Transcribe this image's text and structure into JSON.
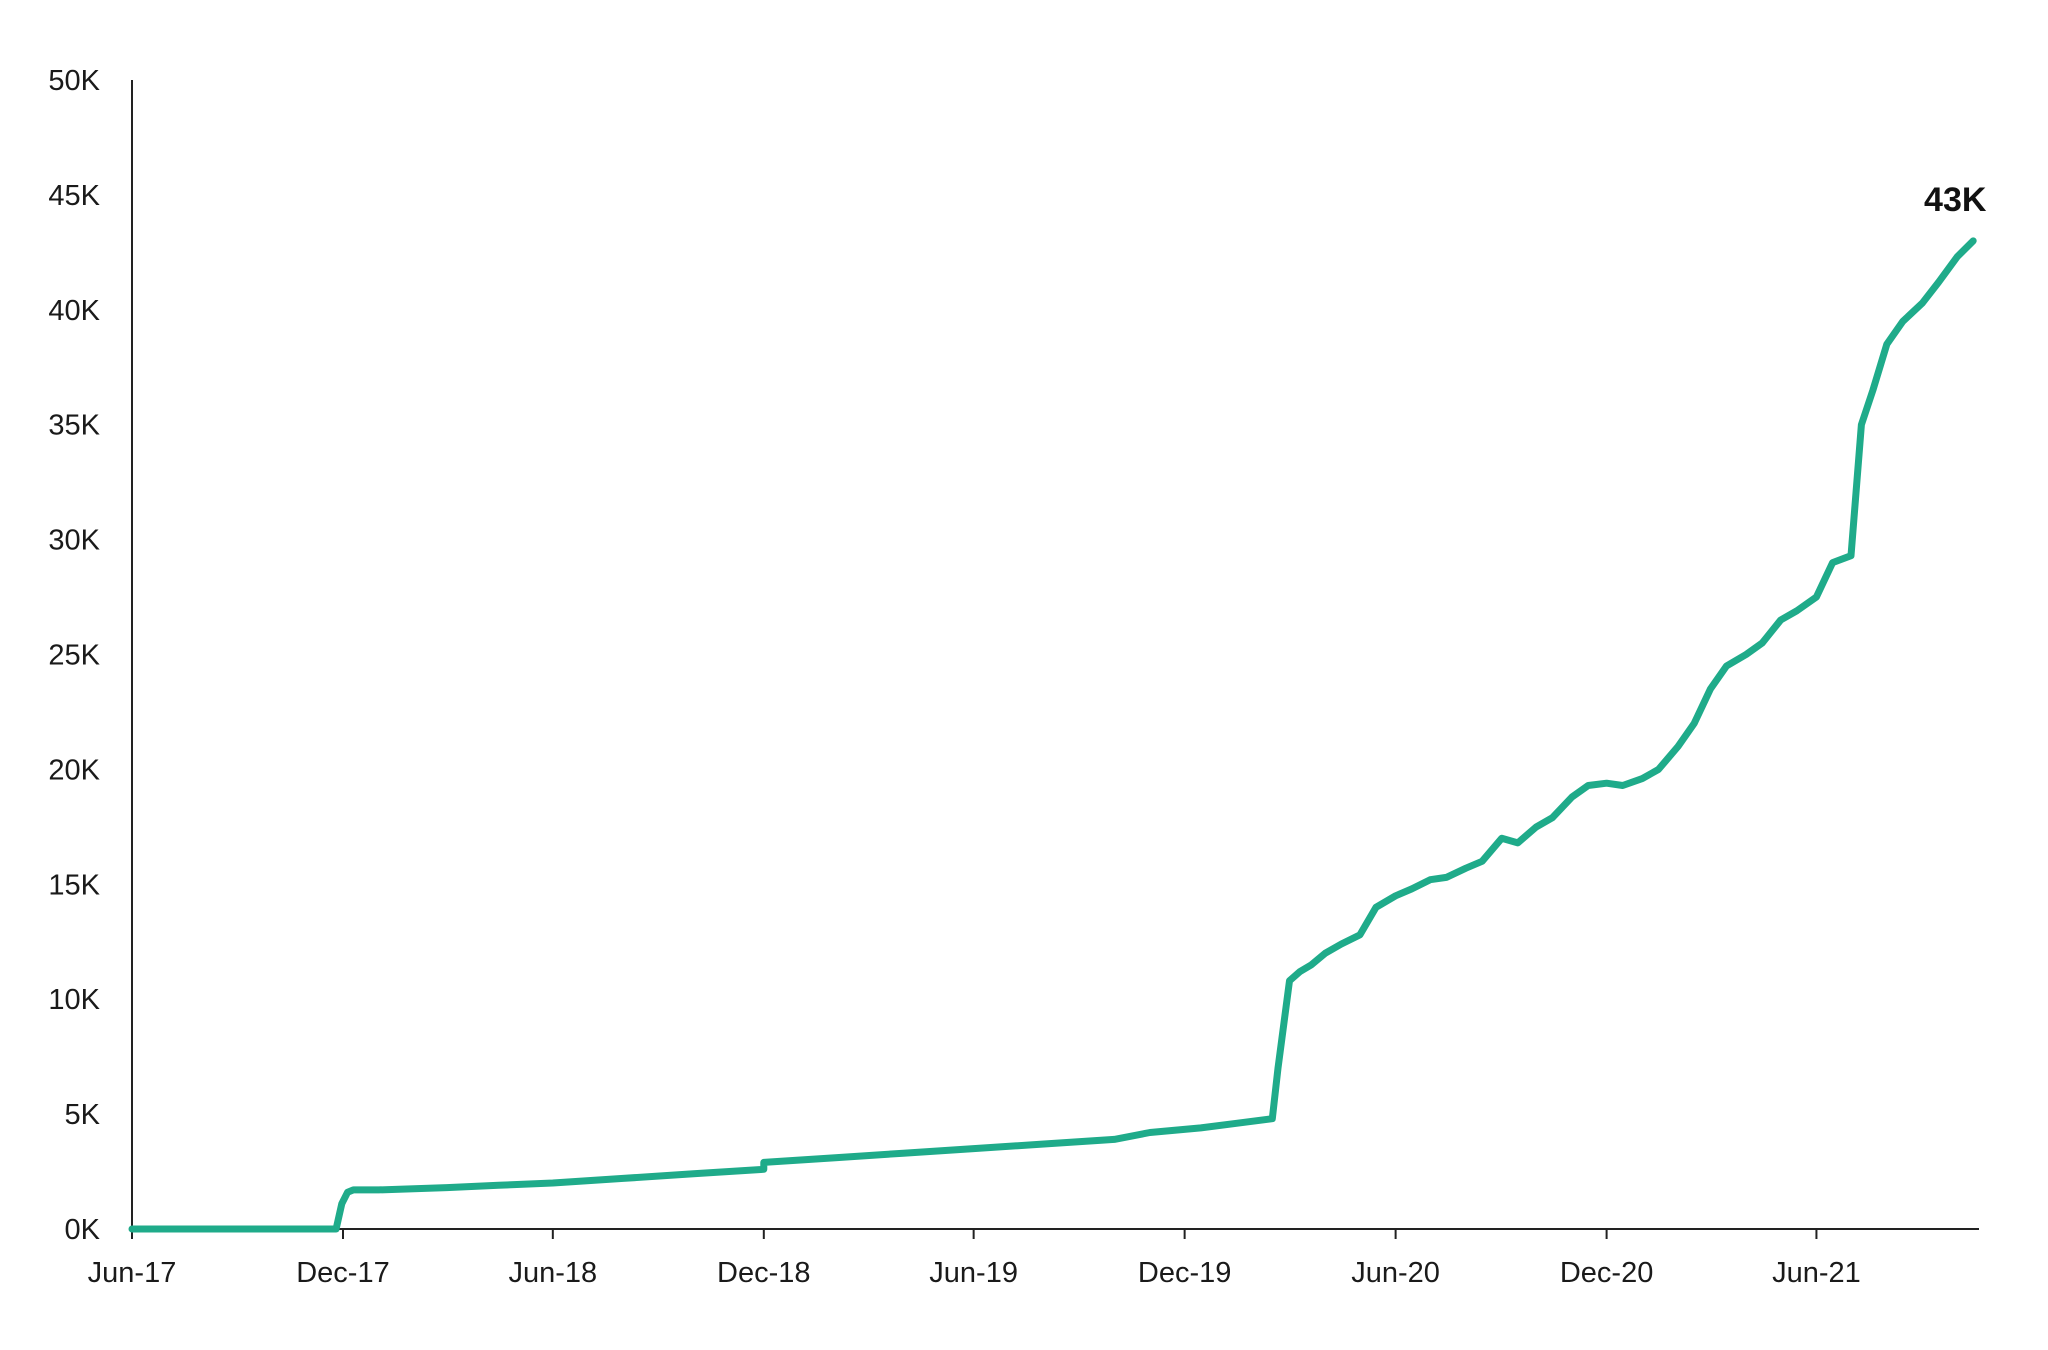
{
  "chart_data": {
    "type": "line",
    "title": "",
    "xlabel": "",
    "ylabel": "",
    "grid": false,
    "legend": "none",
    "x_ticks": [
      "Jun-17",
      "Dec-17",
      "Jun-18",
      "Dec-18",
      "Jun-19",
      "Dec-19",
      "Jun-20",
      "Dec-20",
      "Jun-21"
    ],
    "y_ticks": [
      "0K",
      "5K",
      "10K",
      "15K",
      "20K",
      "25K",
      "30K",
      "35K",
      "40K",
      "45K",
      "50K"
    ],
    "xlim": [
      "2017-06-01",
      "2021-10-20"
    ],
    "ylim": [
      0,
      50000
    ],
    "end_label": "43K",
    "colors": {
      "line": "#1fab8a",
      "axis": "#222222",
      "text": "#1a1a1a"
    },
    "series": [
      {
        "x": [
          "2017-06-01",
          "2017-11-25",
          "2017-11-30",
          "2017-12-05",
          "2017-12-10",
          "2018-01-01",
          "2018-03-01",
          "2018-04-15",
          "2018-06-01",
          "2018-08-01",
          "2018-10-01",
          "2018-12-01",
          "2018-12-01",
          "2019-02-01",
          "2019-04-01",
          "2019-06-01",
          "2019-08-01",
          "2019-10-01",
          "2019-11-01",
          "2019-12-15",
          "2020-01-15",
          "2020-02-15",
          "2020-02-20",
          "2020-03-01",
          "2020-03-10",
          "2020-03-20",
          "2020-04-01",
          "2020-04-15",
          "2020-05-01",
          "2020-05-15",
          "2020-06-01",
          "2020-06-15",
          "2020-07-01",
          "2020-07-15",
          "2020-08-01",
          "2020-08-15",
          "2020-09-01",
          "2020-09-15",
          "2020-10-01",
          "2020-10-15",
          "2020-11-01",
          "2020-11-15",
          "2020-12-01",
          "2020-12-15",
          "2021-01-01",
          "2021-01-15",
          "2021-02-01",
          "2021-02-15",
          "2021-03-01",
          "2021-03-15",
          "2021-04-01",
          "2021-04-15",
          "2021-05-01",
          "2021-05-15",
          "2021-06-01",
          "2021-06-15",
          "2021-07-01",
          "2021-07-10",
          "2021-07-20",
          "2021-08-01",
          "2021-08-15",
          "2021-09-01",
          "2021-09-15",
          "2021-10-01",
          "2021-10-15"
        ],
        "y": [
          0,
          0,
          1100,
          1600,
          1700,
          1700,
          1800,
          1900,
          2000,
          2200,
          2400,
          2600,
          2900,
          3100,
          3300,
          3500,
          3700,
          3900,
          4200,
          4400,
          4600,
          4800,
          7000,
          10800,
          11200,
          11500,
          12000,
          12400,
          12800,
          14000,
          14500,
          14800,
          15200,
          15300,
          15700,
          16000,
          17000,
          16800,
          17500,
          17900,
          18800,
          19300,
          19400,
          19300,
          19600,
          20000,
          21000,
          22000,
          23500,
          24500,
          25000,
          25500,
          26500,
          26900,
          27500,
          29000,
          29300,
          35000,
          36500,
          38500,
          39500,
          40300,
          41200,
          42300,
          43000
        ]
      }
    ]
  }
}
